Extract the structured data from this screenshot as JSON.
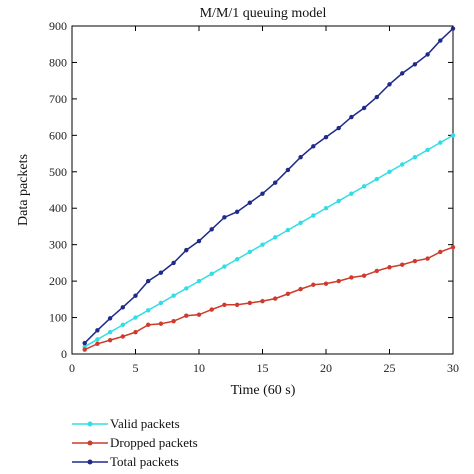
{
  "chart_data": {
    "type": "line",
    "title": "M/M/1 queuing model",
    "xlabel": "Time (60 s)",
    "ylabel": "Data packets",
    "xlim": [
      0,
      30
    ],
    "ylim": [
      0,
      900
    ],
    "xticks": [
      0,
      5,
      10,
      15,
      20,
      25,
      30
    ],
    "yticks": [
      0,
      100,
      200,
      300,
      400,
      500,
      600,
      700,
      800,
      900
    ],
    "grid": false,
    "legend_position": "bottom-left",
    "x": [
      1,
      2,
      3,
      4,
      5,
      6,
      7,
      8,
      9,
      10,
      11,
      12,
      13,
      14,
      15,
      16,
      17,
      18,
      19,
      20,
      21,
      22,
      23,
      24,
      25,
      26,
      27,
      28,
      29,
      30
    ],
    "series": [
      {
        "name": "Valid packets",
        "color": "#33dde6",
        "values": [
          20,
          40,
          60,
          80,
          100,
          120,
          140,
          160,
          180,
          200,
          220,
          240,
          260,
          280,
          300,
          320,
          340,
          360,
          380,
          400,
          420,
          440,
          460,
          480,
          500,
          520,
          540,
          560,
          580,
          600
        ]
      },
      {
        "name": "Dropped packets",
        "color": "#d03a2a",
        "values": [
          12,
          28,
          38,
          48,
          60,
          80,
          83,
          90,
          105,
          108,
          122,
          135,
          135,
          140,
          145,
          152,
          165,
          178,
          190,
          193,
          200,
          210,
          215,
          228,
          238,
          245,
          255,
          262,
          280,
          293
        ]
      },
      {
        "name": "Total packets",
        "color": "#1f2a8a",
        "values": [
          30,
          65,
          98,
          128,
          160,
          200,
          223,
          250,
          285,
          310,
          342,
          375,
          390,
          415,
          440,
          470,
          505,
          540,
          570,
          595,
          620,
          650,
          675,
          705,
          740,
          770,
          795,
          822,
          860,
          893
        ]
      }
    ]
  }
}
